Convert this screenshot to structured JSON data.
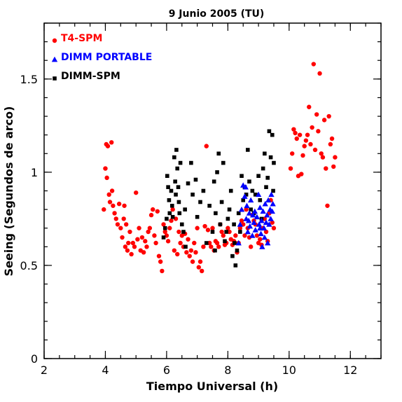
{
  "chart_data": {
    "type": "scatter",
    "title": "9 Junio 2005 (TU)",
    "xlabel": "Tiempo Universal (h)",
    "ylabel": "Seeing (Segundos de arco)",
    "xlim": [
      2,
      13
    ],
    "ylim": [
      0,
      1.8
    ],
    "xticks": [
      2,
      4,
      6,
      8,
      10,
      12
    ],
    "xtick_labels": [
      "2",
      "4",
      "6",
      "8",
      "10",
      "12"
    ],
    "yticks": [
      0,
      0.5,
      1,
      1.5
    ],
    "ytick_labels": [
      "0",
      "0.5",
      "1",
      "1.5"
    ],
    "x_minor_step": 0.5,
    "y_minor_step": 0.1,
    "grid": false,
    "legend_position": "top-left",
    "series": [
      {
        "name": "T4-SPM",
        "color": "#ff0000",
        "marker": "circle",
        "points": [
          [
            3.95,
            0.8
          ],
          [
            4.0,
            1.02
          ],
          [
            4.03,
            1.15
          ],
          [
            4.05,
            0.97
          ],
          [
            4.08,
            1.14
          ],
          [
            4.12,
            0.88
          ],
          [
            4.15,
            0.84
          ],
          [
            4.2,
            1.16
          ],
          [
            4.22,
            0.9
          ],
          [
            4.25,
            0.82
          ],
          [
            4.3,
            0.78
          ],
          [
            4.35,
            0.75
          ],
          [
            4.4,
            0.72
          ],
          [
            4.45,
            0.83
          ],
          [
            4.5,
            0.7
          ],
          [
            4.55,
            0.65
          ],
          [
            4.6,
            0.75
          ],
          [
            4.62,
            0.82
          ],
          [
            4.65,
            0.6
          ],
          [
            4.68,
            0.72
          ],
          [
            4.72,
            0.58
          ],
          [
            4.75,
            0.62
          ],
          [
            4.8,
            0.68
          ],
          [
            4.85,
            0.56
          ],
          [
            4.9,
            0.62
          ],
          [
            4.95,
            0.6
          ],
          [
            5.0,
            0.89
          ],
          [
            5.05,
            0.64
          ],
          [
            5.1,
            0.7
          ],
          [
            5.15,
            0.58
          ],
          [
            5.2,
            0.65
          ],
          [
            5.25,
            0.57
          ],
          [
            5.3,
            0.63
          ],
          [
            5.35,
            0.6
          ],
          [
            5.4,
            0.68
          ],
          [
            5.45,
            0.7
          ],
          [
            5.5,
            0.77
          ],
          [
            5.55,
            0.8
          ],
          [
            5.6,
            0.66
          ],
          [
            5.65,
            0.62
          ],
          [
            5.7,
            0.79
          ],
          [
            5.75,
            0.55
          ],
          [
            5.8,
            0.52
          ],
          [
            5.85,
            0.47
          ],
          [
            5.9,
            0.72
          ],
          [
            5.95,
            0.68
          ],
          [
            6.0,
            0.66
          ],
          [
            6.05,
            0.63
          ],
          [
            6.1,
            0.7
          ],
          [
            6.15,
            0.74
          ],
          [
            6.2,
            0.8
          ],
          [
            6.25,
            0.58
          ],
          [
            6.3,
            0.75
          ],
          [
            6.35,
            0.56
          ],
          [
            6.4,
            0.68
          ],
          [
            6.45,
            0.62
          ],
          [
            6.5,
            0.66
          ],
          [
            6.55,
            0.6
          ],
          [
            6.6,
            0.67
          ],
          [
            6.65,
            0.57
          ],
          [
            6.7,
            0.64
          ],
          [
            6.75,
            0.55
          ],
          [
            6.8,
            0.58
          ],
          [
            6.85,
            0.52
          ],
          [
            6.9,
            0.62
          ],
          [
            6.95,
            0.57
          ],
          [
            7.0,
            0.7
          ],
          [
            7.05,
            0.49
          ],
          [
            7.1,
            0.52
          ],
          [
            7.15,
            0.47
          ],
          [
            7.2,
            0.6
          ],
          [
            7.25,
            0.71
          ],
          [
            7.3,
            1.14
          ],
          [
            7.35,
            0.69
          ],
          [
            7.4,
            0.62
          ],
          [
            7.45,
            0.6
          ],
          [
            7.5,
            0.7
          ],
          [
            7.55,
            0.58
          ],
          [
            7.6,
            0.63
          ],
          [
            7.65,
            0.62
          ],
          [
            7.7,
            0.6
          ],
          [
            7.75,
            0.72
          ],
          [
            7.8,
            0.68
          ],
          [
            7.85,
            0.66
          ],
          [
            7.9,
            0.61
          ],
          [
            7.95,
            0.62
          ],
          [
            8.0,
            0.7
          ],
          [
            8.05,
            0.68
          ],
          [
            8.1,
            0.64
          ],
          [
            8.15,
            0.61
          ],
          [
            8.2,
            0.63
          ],
          [
            8.25,
            0.66
          ],
          [
            8.3,
            0.57
          ],
          [
            8.35,
            0.62
          ],
          [
            8.4,
            0.7
          ],
          [
            8.45,
            0.74
          ],
          [
            8.5,
            0.72
          ],
          [
            8.55,
            0.66
          ],
          [
            8.6,
            0.8
          ],
          [
            8.65,
            0.7
          ],
          [
            8.7,
            0.65
          ],
          [
            8.75,
            0.6
          ],
          [
            8.8,
            0.77
          ],
          [
            8.85,
            0.74
          ],
          [
            8.9,
            0.72
          ],
          [
            8.95,
            0.66
          ],
          [
            9.0,
            0.62
          ],
          [
            9.05,
            0.64
          ],
          [
            9.1,
            0.61
          ],
          [
            9.15,
            0.7
          ],
          [
            9.2,
            0.75
          ],
          [
            9.25,
            0.68
          ],
          [
            9.3,
            0.63
          ],
          [
            9.35,
            0.78
          ],
          [
            9.4,
            0.85
          ],
          [
            9.45,
            0.73
          ],
          [
            9.5,
            0.7
          ],
          [
            10.1,
            1.1
          ],
          [
            10.15,
            1.23
          ],
          [
            10.2,
            1.21
          ],
          [
            10.25,
            1.18
          ],
          [
            10.3,
            0.98
          ],
          [
            10.35,
            1.2
          ],
          [
            10.4,
            0.99
          ],
          [
            10.45,
            1.09
          ],
          [
            10.5,
            1.14
          ],
          [
            10.55,
            1.17
          ],
          [
            10.6,
            1.2
          ],
          [
            10.65,
            1.35
          ],
          [
            10.7,
            1.15
          ],
          [
            10.75,
            1.24
          ],
          [
            10.8,
            1.58
          ],
          [
            10.85,
            1.12
          ],
          [
            10.9,
            1.31
          ],
          [
            10.95,
            1.22
          ],
          [
            11.0,
            1.53
          ],
          [
            11.05,
            1.1
          ],
          [
            11.1,
            1.08
          ],
          [
            11.15,
            1.28
          ],
          [
            11.2,
            1.02
          ],
          [
            11.25,
            0.82
          ],
          [
            11.3,
            1.3
          ],
          [
            11.35,
            1.15
          ],
          [
            11.4,
            1.18
          ],
          [
            11.45,
            1.03
          ],
          [
            11.5,
            1.08
          ],
          [
            10.05,
            1.02
          ]
        ]
      },
      {
        "name": "DIMM PORTABLE",
        "color": "#0000ff",
        "marker": "triangle",
        "points": [
          [
            8.35,
            0.62
          ],
          [
            8.4,
            0.72
          ],
          [
            8.45,
            0.8
          ],
          [
            8.5,
            0.93
          ],
          [
            8.55,
            0.87
          ],
          [
            8.6,
            0.75
          ],
          [
            8.62,
            0.82
          ],
          [
            8.65,
            0.68
          ],
          [
            8.7,
            0.78
          ],
          [
            8.72,
            0.71
          ],
          [
            8.75,
            0.85
          ],
          [
            8.8,
            0.66
          ],
          [
            8.85,
            0.73
          ],
          [
            8.88,
            0.79
          ],
          [
            8.9,
            0.69
          ],
          [
            8.95,
            0.76
          ],
          [
            9.0,
            0.88
          ],
          [
            9.02,
            0.72
          ],
          [
            9.05,
            0.81
          ],
          [
            9.08,
            0.67
          ],
          [
            9.1,
            0.74
          ],
          [
            9.12,
            0.6
          ],
          [
            9.15,
            0.79
          ],
          [
            9.18,
            0.7
          ],
          [
            9.2,
            0.65
          ],
          [
            9.22,
            0.83
          ],
          [
            9.25,
            0.73
          ],
          [
            9.28,
            0.77
          ],
          [
            9.3,
            0.62
          ],
          [
            9.32,
            0.85
          ],
          [
            9.35,
            0.72
          ],
          [
            9.38,
            0.8
          ],
          [
            9.4,
            0.75
          ],
          [
            9.42,
            0.88
          ],
          [
            9.45,
            0.79
          ],
          [
            9.47,
            0.83
          ],
          [
            8.58,
            0.92
          ],
          [
            8.68,
            0.74
          ],
          [
            9.05,
            0.7
          ],
          [
            8.82,
            0.77
          ]
        ]
      },
      {
        "name": "DIMM-SPM",
        "color": "#000000",
        "marker": "square",
        "points": [
          [
            5.9,
            0.65
          ],
          [
            5.95,
            0.7
          ],
          [
            6.0,
            0.75
          ],
          [
            6.02,
            0.98
          ],
          [
            6.05,
            0.92
          ],
          [
            6.08,
            0.85
          ],
          [
            6.1,
            0.78
          ],
          [
            6.15,
            0.9
          ],
          [
            6.18,
            0.82
          ],
          [
            6.2,
            0.76
          ],
          [
            6.25,
            1.08
          ],
          [
            6.28,
            0.95
          ],
          [
            6.3,
            0.88
          ],
          [
            6.32,
            1.12
          ],
          [
            6.35,
            1.02
          ],
          [
            6.38,
            0.92
          ],
          [
            6.4,
            0.84
          ],
          [
            6.42,
            0.78
          ],
          [
            6.45,
            1.05
          ],
          [
            6.5,
            0.72
          ],
          [
            6.55,
            0.68
          ],
          [
            6.6,
            0.8
          ],
          [
            6.7,
            0.94
          ],
          [
            6.8,
            1.05
          ],
          [
            6.85,
            0.88
          ],
          [
            6.95,
            0.96
          ],
          [
            7.0,
            0.76
          ],
          [
            7.1,
            0.84
          ],
          [
            7.2,
            0.9
          ],
          [
            7.3,
            0.62
          ],
          [
            7.4,
            0.82
          ],
          [
            7.5,
            0.68
          ],
          [
            7.55,
            0.95
          ],
          [
            7.6,
            0.78
          ],
          [
            7.65,
            1.0
          ],
          [
            7.7,
            1.1
          ],
          [
            7.75,
            0.72
          ],
          [
            7.8,
            0.84
          ],
          [
            7.85,
            1.05
          ],
          [
            7.9,
            0.63
          ],
          [
            7.95,
            0.68
          ],
          [
            8.0,
            0.75
          ],
          [
            8.05,
            0.8
          ],
          [
            8.1,
            0.9
          ],
          [
            8.15,
            0.55
          ],
          [
            8.2,
            0.72
          ],
          [
            8.25,
            0.5
          ],
          [
            8.3,
            0.58
          ],
          [
            8.35,
            0.78
          ],
          [
            8.4,
            0.68
          ],
          [
            8.45,
            0.98
          ],
          [
            8.5,
            0.85
          ],
          [
            8.55,
            0.92
          ],
          [
            8.6,
            0.88
          ],
          [
            8.65,
            1.12
          ],
          [
            8.7,
            0.95
          ],
          [
            8.75,
            0.8
          ],
          [
            8.8,
            0.9
          ],
          [
            8.85,
            0.78
          ],
          [
            8.9,
            0.88
          ],
          [
            9.0,
            0.98
          ],
          [
            9.05,
            0.85
          ],
          [
            9.1,
            0.75
          ],
          [
            9.15,
            1.02
          ],
          [
            9.2,
            1.1
          ],
          [
            9.25,
            0.92
          ],
          [
            9.3,
            0.97
          ],
          [
            9.35,
            1.22
          ],
          [
            9.4,
            1.08
          ],
          [
            9.45,
            1.2
          ],
          [
            9.5,
            1.05
          ],
          [
            9.48,
            0.9
          ],
          [
            8.22,
            0.62
          ],
          [
            7.58,
            0.58
          ],
          [
            6.62,
            0.6
          ]
        ]
      }
    ]
  }
}
